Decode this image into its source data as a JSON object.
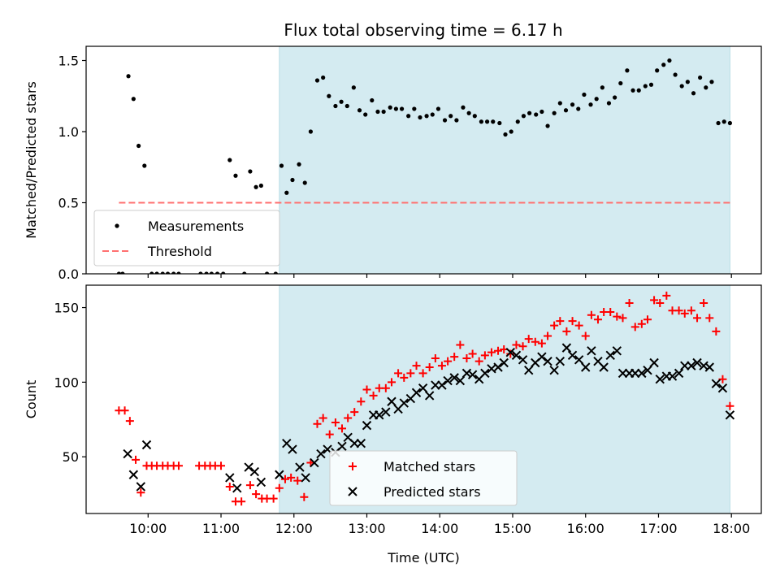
{
  "title": "Flux total observing time = 6.17 h",
  "colors": {
    "shade": "#d4ebf1",
    "threshold": "#ff7070",
    "matched": "#ff0000",
    "predicted": "#000000",
    "measurement": "#000000"
  },
  "chart_data": [
    {
      "type": "scatter",
      "panel": "top",
      "ylabel": "Matched/Predicted stars",
      "xlabel": "",
      "xlim": [
        9.15,
        18.41
      ],
      "ylim": [
        0,
        1.6
      ],
      "yticks": [
        0,
        0.5,
        1.0,
        1.5
      ],
      "ytick_labels": [
        "0.0",
        "0.5",
        "1.0",
        "1.5"
      ],
      "shaded_x": [
        11.8,
        17.98
      ],
      "threshold": {
        "y": 0.5,
        "x": [
          9.6,
          17.98
        ]
      },
      "legend": {
        "position": "lower-left",
        "entries": [
          "Measurements",
          "Threshold"
        ]
      },
      "series": [
        {
          "name": "Measurements",
          "x": [
            9.6,
            9.65,
            9.73,
            9.8,
            9.87,
            9.95,
            10.05,
            10.12,
            10.2,
            10.27,
            10.35,
            10.42,
            10.72,
            10.8,
            10.87,
            10.95,
            11.03,
            11.12,
            11.2,
            11.32,
            11.4,
            11.48,
            11.55,
            11.63,
            11.75,
            11.83,
            11.9,
            11.98,
            12.07,
            12.15,
            12.23,
            12.32,
            12.4,
            12.48,
            12.57,
            12.65,
            12.73,
            12.82,
            12.9,
            12.98,
            13.07,
            13.15,
            13.23,
            13.32,
            13.4,
            13.48,
            13.57,
            13.65,
            13.73,
            13.82,
            13.9,
            13.98,
            14.07,
            14.15,
            14.23,
            14.32,
            14.4,
            14.48,
            14.57,
            14.65,
            14.73,
            14.82,
            14.9,
            14.98,
            15.07,
            15.15,
            15.23,
            15.32,
            15.4,
            15.48,
            15.57,
            15.65,
            15.73,
            15.82,
            15.9,
            15.98,
            16.07,
            16.15,
            16.23,
            16.32,
            16.4,
            16.48,
            16.57,
            16.65,
            16.73,
            16.82,
            16.9,
            16.98,
            17.07,
            17.15,
            17.23,
            17.32,
            17.4,
            17.48,
            17.57,
            17.65,
            17.73,
            17.82,
            17.9,
            17.98
          ],
          "y": [
            0,
            0,
            1.39,
            1.23,
            0.9,
            0.76,
            0,
            0,
            0,
            0,
            0,
            0,
            0,
            0,
            0,
            0,
            0,
            0.8,
            0.69,
            0,
            0.72,
            0.61,
            0.62,
            0,
            0,
            0.76,
            0.57,
            0.66,
            0.77,
            0.64,
            1.0,
            1.36,
            1.38,
            1.25,
            1.18,
            1.21,
            1.18,
            1.31,
            1.15,
            1.12,
            1.22,
            1.14,
            1.14,
            1.17,
            1.16,
            1.16,
            1.11,
            1.16,
            1.1,
            1.11,
            1.12,
            1.16,
            1.08,
            1.11,
            1.08,
            1.17,
            1.13,
            1.11,
            1.07,
            1.07,
            1.07,
            1.06,
            0.98,
            1.0,
            1.07,
            1.11,
            1.13,
            1.12,
            1.14,
            1.04,
            1.13,
            1.2,
            1.15,
            1.19,
            1.16,
            1.26,
            1.19,
            1.23,
            1.31,
            1.2,
            1.24,
            1.34,
            1.43,
            1.29,
            1.29,
            1.32,
            1.33,
            1.43,
            1.47,
            1.5,
            1.4,
            1.32,
            1.35,
            1.27,
            1.38,
            1.31,
            1.35,
            1.06,
            1.07,
            1.06
          ]
        }
      ]
    },
    {
      "type": "scatter",
      "panel": "bottom",
      "xlabel": "Time (UTC)",
      "ylabel": "Count",
      "xlim": [
        9.15,
        18.41
      ],
      "ylim": [
        12,
        165
      ],
      "xticks": [
        10,
        11,
        12,
        13,
        14,
        15,
        16,
        17,
        18
      ],
      "xtick_labels": [
        "10:00",
        "11:00",
        "12:00",
        "13:00",
        "14:00",
        "15:00",
        "16:00",
        "17:00",
        "18:00"
      ],
      "yticks": [
        50,
        100,
        150
      ],
      "ytick_labels": [
        "50",
        "100",
        "150"
      ],
      "shaded_x": [
        11.8,
        17.98
      ],
      "legend": {
        "position": "lower-center",
        "entries": [
          "Matched stars",
          "Predicted stars"
        ]
      },
      "series": [
        {
          "name": "Matched stars",
          "x": [
            9.6,
            9.68,
            9.75,
            9.83,
            9.9,
            9.98,
            10.05,
            10.12,
            10.2,
            10.27,
            10.35,
            10.42,
            10.7,
            10.78,
            10.85,
            10.92,
            11.0,
            11.12,
            11.2,
            11.28,
            11.4,
            11.48,
            11.56,
            11.63,
            11.72,
            11.8,
            11.88,
            11.96,
            12.05,
            12.14,
            12.23,
            12.32,
            12.4,
            12.49,
            12.57,
            12.66,
            12.74,
            12.83,
            12.92,
            13.0,
            13.09,
            13.17,
            13.26,
            13.34,
            13.43,
            13.51,
            13.6,
            13.68,
            13.77,
            13.86,
            13.94,
            14.03,
            14.11,
            14.2,
            14.28,
            14.37,
            14.45,
            14.54,
            14.62,
            14.71,
            14.8,
            14.88,
            14.97,
            15.05,
            15.14,
            15.22,
            15.31,
            15.4,
            15.48,
            15.57,
            15.65,
            15.74,
            15.82,
            15.91,
            16.0,
            16.08,
            16.17,
            16.25,
            16.34,
            16.43,
            16.51,
            16.6,
            16.68,
            16.77,
            16.85,
            16.94,
            17.02,
            17.11,
            17.19,
            17.28,
            17.36,
            17.45,
            17.53,
            17.62,
            17.7,
            17.79,
            17.88,
            17.98
          ],
          "y": [
            81,
            81,
            74,
            48,
            26,
            44,
            44,
            44,
            44,
            44,
            44,
            44,
            44,
            44,
            44,
            44,
            44,
            30,
            20,
            20,
            31,
            25,
            22,
            22,
            22,
            29,
            35,
            36,
            34,
            23,
            46,
            72,
            76,
            65,
            73,
            69,
            76,
            80,
            87,
            95,
            91,
            96,
            96,
            100,
            106,
            103,
            106,
            111,
            106,
            110,
            116,
            111,
            114,
            117,
            125,
            116,
            119,
            114,
            118,
            120,
            121,
            122,
            119,
            125,
            124,
            129,
            127,
            126,
            131,
            138,
            141,
            134,
            141,
            138,
            131,
            145,
            142,
            147,
            147,
            144,
            143,
            153,
            137,
            139,
            142,
            155,
            153,
            158,
            148,
            148,
            146,
            148,
            143,
            153,
            143,
            134,
            102,
            84
          ]
        },
        {
          "name": "Predicted stars",
          "x": [
            9.72,
            9.8,
            9.9,
            9.98,
            11.12,
            11.22,
            11.38,
            11.46,
            11.55,
            11.8,
            11.9,
            11.98,
            12.08,
            12.16,
            12.28,
            12.37,
            12.46,
            12.57,
            12.66,
            12.74,
            12.83,
            12.92,
            13.0,
            13.09,
            13.17,
            13.26,
            13.34,
            13.43,
            13.51,
            13.6,
            13.68,
            13.77,
            13.86,
            13.94,
            14.03,
            14.11,
            14.2,
            14.28,
            14.37,
            14.45,
            14.54,
            14.62,
            14.71,
            14.8,
            14.88,
            14.97,
            15.05,
            15.14,
            15.22,
            15.31,
            15.4,
            15.48,
            15.57,
            15.65,
            15.74,
            15.82,
            15.91,
            16.0,
            16.08,
            16.17,
            16.25,
            16.34,
            16.43,
            16.51,
            16.6,
            16.68,
            16.77,
            16.85,
            16.94,
            17.02,
            17.11,
            17.19,
            17.28,
            17.36,
            17.45,
            17.53,
            17.62,
            17.7,
            17.79,
            17.88,
            17.98
          ],
          "y": [
            52,
            38,
            30,
            58,
            36,
            29,
            43,
            40,
            33,
            38,
            59,
            55,
            43,
            36,
            46,
            52,
            55,
            53,
            57,
            63,
            59,
            59,
            71,
            78,
            78,
            80,
            87,
            82,
            86,
            89,
            93,
            96,
            91,
            98,
            98,
            101,
            103,
            101,
            106,
            105,
            102,
            106,
            109,
            110,
            113,
            120,
            118,
            115,
            108,
            113,
            117,
            114,
            108,
            114,
            123,
            118,
            115,
            110,
            121,
            114,
            110,
            118,
            121,
            106,
            106,
            106,
            106,
            108,
            113,
            102,
            104,
            104,
            106,
            111,
            111,
            113,
            111,
            110,
            99,
            96,
            78
          ]
        }
      ]
    }
  ]
}
